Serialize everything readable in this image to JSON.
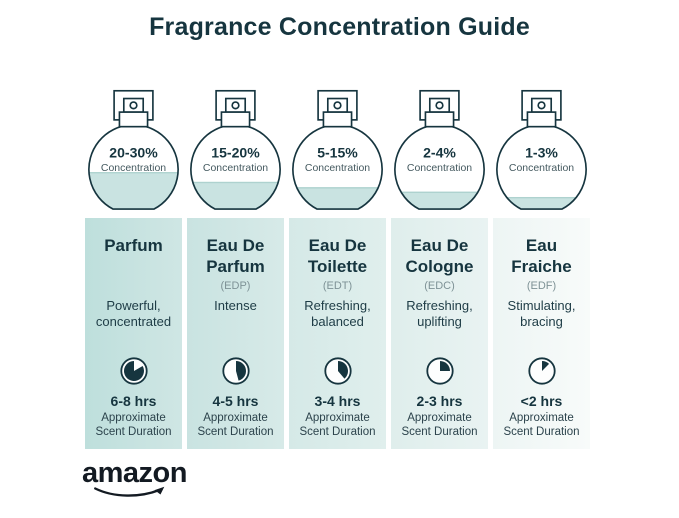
{
  "title": "Fragrance Concentration Guide",
  "logo": {
    "text": "amazon"
  },
  "colors": {
    "ink": "#16353f",
    "logo_ink": "#131a22",
    "abbr_gray": "#7e9296",
    "bottle_fill": "#c9e3e1",
    "bottle_fill_edge": "#aed2cf",
    "column_gradients": [
      [
        "#bedfdc",
        "#cfe6e4"
      ],
      [
        "#c9e3e1",
        "#d7eae8"
      ],
      [
        "#d5e9e7",
        "#e0efed"
      ],
      [
        "#dfeeec",
        "#e9f3f2"
      ],
      [
        "#edf5f4",
        "#f8fbfa"
      ]
    ]
  },
  "columns": [
    {
      "name": "Parfum",
      "abbr": "",
      "description": "Powerful,\nconcentrated",
      "concentration": "20-30%",
      "concentration_label": "Concentration",
      "fill_percent": 47,
      "duration": "6-8 hrs",
      "duration_label": "Approximate\nScent Duration",
      "clock_start_deg": 60,
      "clock_end_deg": 360
    },
    {
      "name": "Eau De\nParfum",
      "abbr": "(EDP)",
      "description": "Intense",
      "concentration": "15-20%",
      "concentration_label": "Concentration",
      "fill_percent": 36,
      "duration": "4-5 hrs",
      "duration_label": "Approximate\nScent Duration",
      "clock_start_deg": 0,
      "clock_end_deg": 165
    },
    {
      "name": "Eau De\nToilette",
      "abbr": "(EDT)",
      "description": "Refreshing,\nbalanced",
      "concentration": "5-15%",
      "concentration_label": "Concentration",
      "fill_percent": 30,
      "duration": "3-4 hrs",
      "duration_label": "Approximate\nScent Duration",
      "clock_start_deg": 0,
      "clock_end_deg": 140
    },
    {
      "name": "Eau De\nCologne",
      "abbr": "(EDC)",
      "description": "Refreshing,\nuplifting",
      "concentration": "2-4%",
      "concentration_label": "Concentration",
      "fill_percent": 25,
      "duration": "2-3 hrs",
      "duration_label": "Approximate\nScent Duration",
      "clock_start_deg": 0,
      "clock_end_deg": 90
    },
    {
      "name": "Eau\nFraiche",
      "abbr": "(EDF)",
      "description": "Stimulating,\nbracing",
      "concentration": "1-3%",
      "concentration_label": "Concentration",
      "fill_percent": 19,
      "duration": "<2 hrs",
      "duration_label": "Approximate\nScent Duration",
      "clock_start_deg": 0,
      "clock_end_deg": 45
    }
  ]
}
